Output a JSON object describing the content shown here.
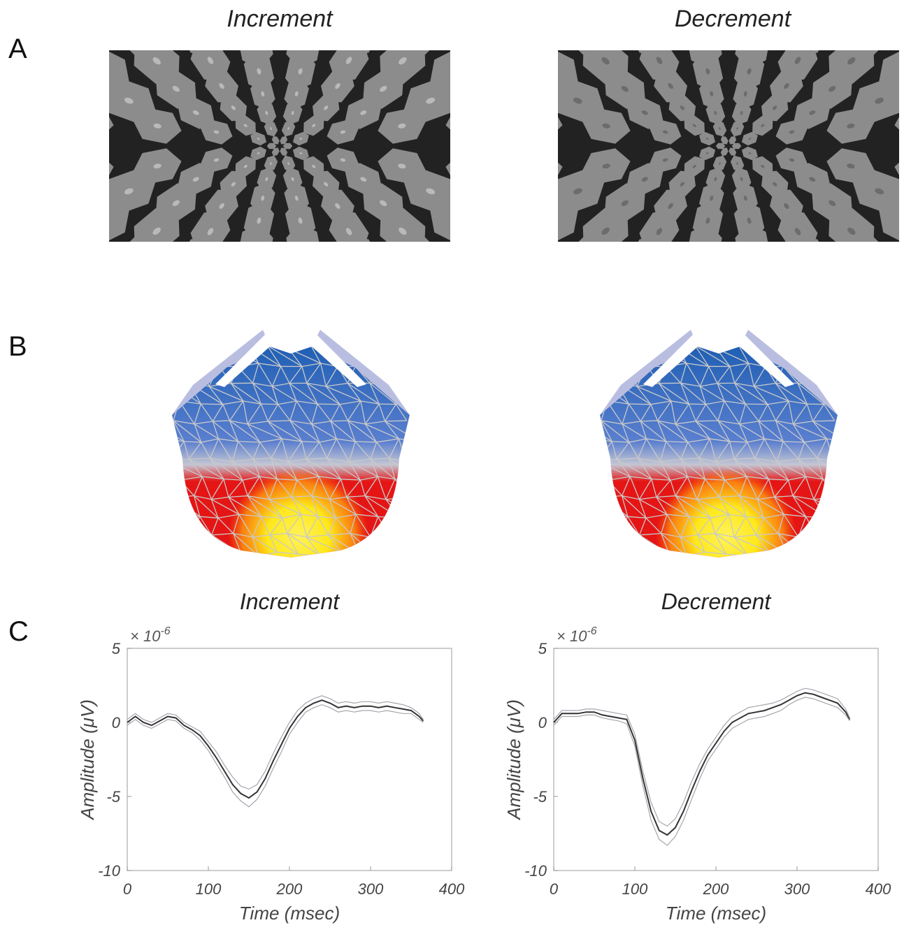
{
  "figure": {
    "panels": [
      {
        "letter": "A"
      },
      {
        "letter": "B"
      },
      {
        "letter": "C"
      }
    ],
    "stimuli": [
      {
        "title": "Increment",
        "center_color": "#b9b9b9",
        "tile_color": "#8c8c8c",
        "background_color": "#222222"
      },
      {
        "title": "Decrement",
        "center_color": "#6c6c6c",
        "tile_color": "#8c8c8c",
        "background_color": "#222222"
      }
    ],
    "topomaps": [
      {
        "id": "increment"
      },
      {
        "id": "decrement"
      }
    ],
    "colors": {
      "negative": "#1f5fb4",
      "neutral": "#c4c6d3",
      "positive": "#e51515",
      "peak": "#ffe81a",
      "mesh": "#c9c9c9",
      "trace": "#333333",
      "ci": "#a9a3ad"
    }
  },
  "chart_data": [
    {
      "type": "line",
      "title": "Increment",
      "xlabel": "Time (msec)",
      "ylabel": "Amplitude (μV)",
      "y_exponent": "× 10^-6",
      "exp_base": "× 10",
      "exp_power": "-6",
      "xlim": [
        0,
        400
      ],
      "ylim": [
        -10,
        5
      ],
      "xticks": [
        "0",
        "100",
        "200",
        "300",
        "400"
      ],
      "yticks": [
        "5",
        "0",
        "-5",
        "-10"
      ],
      "grid": false,
      "x": [
        0,
        10,
        20,
        30,
        40,
        50,
        60,
        70,
        80,
        90,
        100,
        110,
        120,
        130,
        140,
        150,
        160,
        170,
        180,
        190,
        200,
        210,
        220,
        230,
        240,
        250,
        260,
        270,
        280,
        290,
        300,
        310,
        320,
        330,
        340,
        350,
        360,
        365
      ],
      "series": [
        {
          "values": [
            0.0,
            0.4,
            0.0,
            -0.2,
            0.1,
            0.4,
            0.3,
            -0.2,
            -0.5,
            -0.9,
            -1.6,
            -2.4,
            -3.3,
            -4.2,
            -4.8,
            -5.1,
            -4.7,
            -3.8,
            -2.6,
            -1.5,
            -0.4,
            0.4,
            1.0,
            1.3,
            1.5,
            1.3,
            1.0,
            1.1,
            1.0,
            1.1,
            1.1,
            1.0,
            1.1,
            1.0,
            0.9,
            0.8,
            0.4,
            0.1
          ]
        },
        {
          "values": [
            0.2,
            0.6,
            0.2,
            0.0,
            0.3,
            0.6,
            0.5,
            0.0,
            -0.3,
            -0.6,
            -1.3,
            -2.0,
            -2.9,
            -3.7,
            -4.3,
            -4.5,
            -4.2,
            -3.3,
            -2.1,
            -1.0,
            0.0,
            0.8,
            1.3,
            1.6,
            1.8,
            1.6,
            1.3,
            1.4,
            1.3,
            1.4,
            1.4,
            1.3,
            1.4,
            1.3,
            1.2,
            1.0,
            0.6,
            0.2
          ]
        },
        {
          "values": [
            -0.2,
            0.2,
            -0.2,
            -0.4,
            -0.1,
            0.2,
            0.1,
            -0.4,
            -0.7,
            -1.2,
            -1.9,
            -2.8,
            -3.7,
            -4.7,
            -5.3,
            -5.7,
            -5.2,
            -4.3,
            -3.1,
            -2.0,
            -0.8,
            0.0,
            0.7,
            1.0,
            1.2,
            1.0,
            0.7,
            0.8,
            0.7,
            0.8,
            0.8,
            0.7,
            0.8,
            0.7,
            0.6,
            0.6,
            0.2,
            0.0
          ]
        }
      ]
    },
    {
      "type": "line",
      "title": "Decrement",
      "xlabel": "Time (msec)",
      "ylabel": "Amplitude (μV)",
      "y_exponent": "× 10^-6",
      "exp_base": "× 10",
      "exp_power": "-6",
      "xlim": [
        0,
        400
      ],
      "ylim": [
        -10,
        5
      ],
      "xticks": [
        "0",
        "100",
        "200",
        "300",
        "400"
      ],
      "yticks": [
        "5",
        "0",
        "-5",
        "-10"
      ],
      "grid": false,
      "x": [
        0,
        10,
        20,
        30,
        40,
        50,
        60,
        70,
        80,
        90,
        100,
        110,
        120,
        130,
        140,
        150,
        160,
        170,
        180,
        190,
        200,
        210,
        220,
        230,
        240,
        250,
        260,
        270,
        280,
        290,
        300,
        310,
        320,
        330,
        340,
        350,
        360,
        365
      ],
      "series": [
        {
          "values": [
            0.0,
            0.6,
            0.6,
            0.6,
            0.7,
            0.7,
            0.5,
            0.4,
            0.3,
            0.2,
            -1.2,
            -3.8,
            -6.0,
            -7.3,
            -7.6,
            -7.1,
            -6.0,
            -4.6,
            -3.3,
            -2.2,
            -1.4,
            -0.6,
            0.0,
            0.3,
            0.6,
            0.7,
            0.8,
            1.0,
            1.2,
            1.5,
            1.8,
            2.0,
            1.9,
            1.7,
            1.5,
            1.3,
            0.7,
            0.2
          ]
        },
        {
          "values": [
            0.2,
            0.8,
            0.8,
            0.8,
            0.9,
            0.9,
            0.8,
            0.7,
            0.6,
            0.5,
            -0.8,
            -3.3,
            -5.4,
            -6.7,
            -7.0,
            -6.5,
            -5.4,
            -4.0,
            -2.8,
            -1.8,
            -1.0,
            -0.2,
            0.4,
            0.7,
            1.0,
            1.1,
            1.2,
            1.3,
            1.5,
            1.8,
            2.1,
            2.3,
            2.2,
            2.0,
            1.8,
            1.6,
            0.9,
            0.3
          ]
        },
        {
          "values": [
            -0.2,
            0.4,
            0.4,
            0.4,
            0.5,
            0.5,
            0.3,
            0.2,
            0.1,
            -0.1,
            -1.6,
            -4.3,
            -6.6,
            -7.9,
            -8.3,
            -7.7,
            -6.6,
            -5.2,
            -3.8,
            -2.6,
            -1.8,
            -1.0,
            -0.4,
            -0.1,
            0.2,
            0.3,
            0.4,
            0.6,
            0.8,
            1.2,
            1.5,
            1.7,
            1.6,
            1.4,
            1.2,
            1.0,
            0.5,
            0.1
          ]
        }
      ]
    }
  ]
}
